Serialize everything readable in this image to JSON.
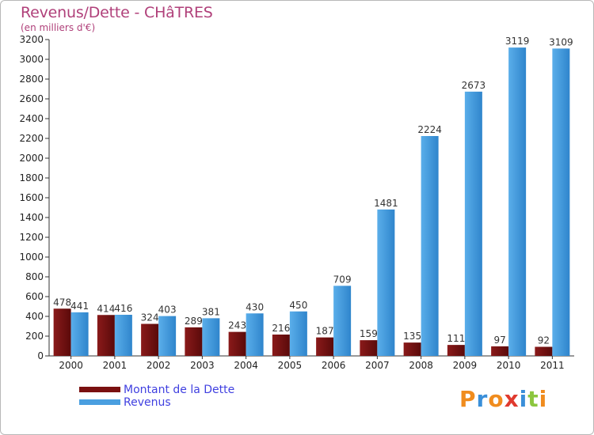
{
  "chart_data": {
    "type": "bar",
    "title": "Revenus/Dette - CHâTRES",
    "subtitle": "(en milliers d'€)",
    "categories": [
      "2000",
      "2001",
      "2002",
      "2003",
      "2004",
      "2005",
      "2006",
      "2007",
      "2008",
      "2009",
      "2010",
      "2011"
    ],
    "series": [
      {
        "name": "Montant de la Dette",
        "color": "#7a1010",
        "values": [
          478,
          414,
          324,
          289,
          243,
          216,
          187,
          159,
          135,
          111,
          97,
          92
        ]
      },
      {
        "name": "Revenus",
        "color": "#4a9fe0",
        "values": [
          441,
          416,
          403,
          381,
          430,
          450,
          709,
          1481,
          2224,
          2673,
          3119,
          3109
        ]
      }
    ],
    "ylim": [
      0,
      3200
    ],
    "ytick_step": 200,
    "grid": false,
    "legend": "bottom-left"
  },
  "brand": {
    "letters": [
      "P",
      "r",
      "o",
      "x",
      "i",
      "t",
      "i"
    ],
    "colors": [
      "#f08c1e",
      "#3a8fd9",
      "#f08c1e",
      "#e03a2e",
      "#3a8fd9",
      "#8cc63f",
      "#f08c1e"
    ]
  }
}
